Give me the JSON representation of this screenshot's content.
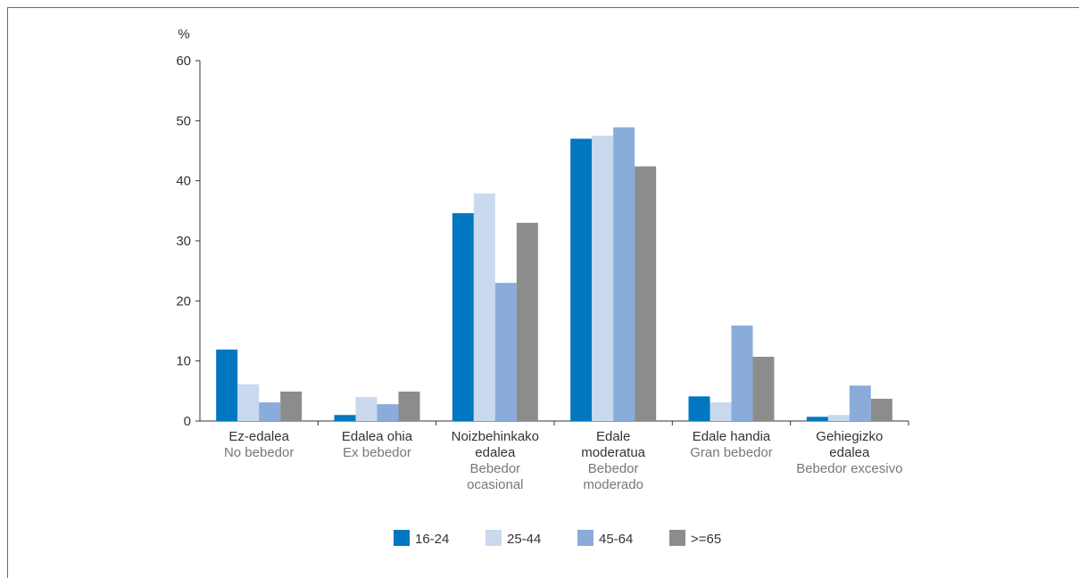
{
  "chart_data": {
    "type": "bar",
    "y_unit": "%",
    "ylim": [
      0,
      60
    ],
    "yticks": [
      "0",
      "10",
      "20",
      "30",
      "40",
      "50",
      "60"
    ],
    "categories": [
      {
        "eu": [
          "Ez-edalea"
        ],
        "es": [
          "No bebedor"
        ]
      },
      {
        "eu": [
          "Edalea ohia"
        ],
        "es": [
          "Ex bebedor"
        ]
      },
      {
        "eu": [
          "Noizbehinkako",
          "edalea"
        ],
        "es": [
          "Bebedor",
          "ocasional"
        ]
      },
      {
        "eu": [
          "Edale",
          "moderatua"
        ],
        "es": [
          "Bebedor",
          "moderado"
        ]
      },
      {
        "eu": [
          "Edale handia"
        ],
        "es": [
          "Gran bebedor"
        ]
      },
      {
        "eu": [
          "Gehiegizko",
          "edalea"
        ],
        "es": [
          "Bebedor excesivo"
        ]
      }
    ],
    "series": [
      {
        "name": "16-24",
        "color": "#0077c0",
        "values": [
          11.9,
          1.0,
          34.6,
          47.0,
          4.1,
          0.7
        ]
      },
      {
        "name": "25-44",
        "color": "#c9d9ee",
        "values": [
          6.1,
          4.0,
          37.9,
          47.5,
          3.1,
          1.0
        ]
      },
      {
        "name": "45-64",
        "color": "#89acdb",
        "values": [
          3.1,
          2.8,
          23.0,
          48.9,
          15.9,
          5.9
        ]
      },
      {
        "name": ">=65",
        "color": "#8c8c8c",
        "values": [
          4.9,
          4.9,
          33.0,
          42.4,
          10.7,
          3.7
        ]
      }
    ],
    "legend_position": "bottom",
    "grid": false
  }
}
